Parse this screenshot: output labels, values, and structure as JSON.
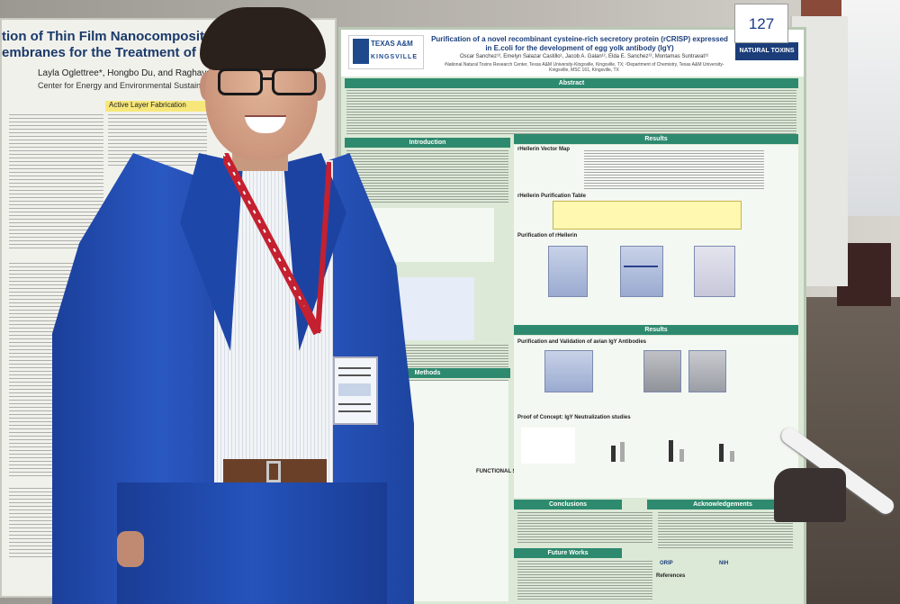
{
  "left_poster": {
    "title": "tion of Thin Film Nanocomposite Forward O\nembranes for the Treatment of Produced Wa",
    "authors": "Layla Oglettree*, Hongbo Du, and Raghava Kommalapati",
    "affiliation": "Center for Energy and Environmental Sustainability, Prairie View A&M Universit",
    "box_label": "Active Layer Fabrication"
  },
  "main_poster": {
    "logo_line1": "TEXAS A&M",
    "logo_line2": "KINGSVILLE",
    "title": "Purification of a novel recombinant cysteine-rich secretory protein (rCRISP) expressed in E.coli for the development of egg yolk antibody (IgY)",
    "authors": "Oscar Sanchez¹², Emelyn Salazar Castillo¹, Jacob A. Galan¹², Elda E. Sanchez¹², Montamas Suntravat¹²",
    "affiliation": "¹National Natural Toxins Research Center, Texas A&M University-Kingsville, Kingsville, TX; ²Department of Chemistry, Texas A&M University-Kingsville, MSC 161, Kingsville, TX",
    "toxins_logo": "NATURAL TOXINS",
    "sections": {
      "abstract": "Abstract",
      "introduction": "Introduction",
      "methods": "Methods",
      "results1": "Results",
      "results2": "Results",
      "conclusions": "Conclusions",
      "acknowledgements": "Acknowledgements",
      "future_works": "Future Works"
    },
    "subheads": {
      "vector_map": "rHellerin Vector Map",
      "purif_table": "rHellerin Purification Table",
      "purif_of": "Purification of rHellerin",
      "igy_validation": "Purification and Validation of avian IgY Antibodies",
      "proof": "Proof of Concept: IgY Neutralization studies",
      "functional": "FUNCTIONAL STUDIES",
      "references": "References"
    },
    "logos": {
      "orip": "ORIP",
      "nih": "NIH"
    }
  },
  "poster_number": "127"
}
